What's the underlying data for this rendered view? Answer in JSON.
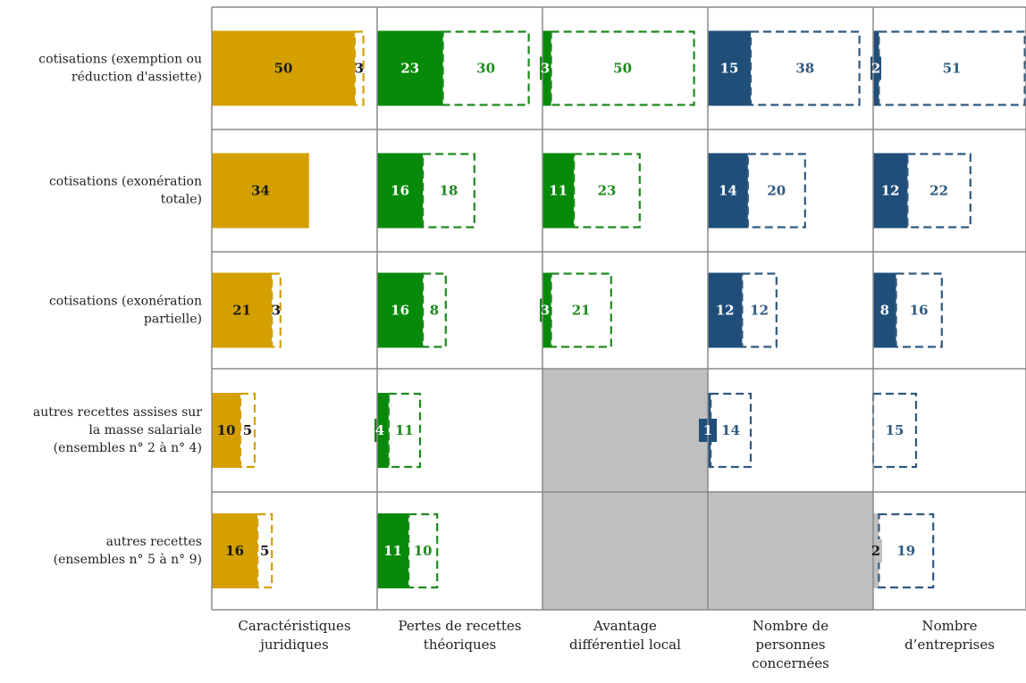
{
  "colors": {
    "legal": "#D4A000",
    "pertes": "#078A0A",
    "pertes_text": "#1E8A1E",
    "blue": "#1F4E79",
    "blue_text": "#2F5A80",
    "grey": "#BFBFBF",
    "dark_text": "#1A1A1A"
  },
  "chart_data": {
    "type": "bar",
    "layout": "small-multiples-grid",
    "note": "Each cell: solid bar = first value, dashed outline = second value",
    "rows": [
      "cotisations (exemption ou\nréduction d'assiette)",
      "cotisations (exonération\ntotale)",
      "cotisations (exonération\npartielle)",
      "autres recettes assises sur\nla masse salariale\n(ensembles n° 2 à n° 4)",
      "autres recettes\n(ensembles n° 5 à n° 9)"
    ],
    "columns": [
      {
        "label": "Caractéristiques\njuridiques",
        "solid_color": "#D4A000",
        "dash_color": "#D4A000",
        "solid_text_color": "#1A1A1A",
        "dash_text_color": "#1A1A1A",
        "cells": [
          {
            "solid": 50,
            "dashed": 3
          },
          {
            "solid": 34,
            "dashed": 0
          },
          {
            "solid": 21,
            "dashed": 3
          },
          {
            "solid": 10,
            "dashed": 5
          },
          {
            "solid": 16,
            "dashed": 5
          }
        ]
      },
      {
        "label": "Pertes de recettes\nthéoriques",
        "solid_color": "#078A0A",
        "dash_color": "#1E8A1E",
        "solid_text_color": "#FFFFFF",
        "dash_text_color": "#1E8A1E",
        "cells": [
          {
            "solid": 23,
            "dashed": 30
          },
          {
            "solid": 16,
            "dashed": 18
          },
          {
            "solid": 16,
            "dashed": 8
          },
          {
            "solid": 4,
            "dashed": 11
          },
          {
            "solid": 11,
            "dashed": 10
          }
        ]
      },
      {
        "label": "Avantage\ndifférentiel local",
        "solid_color": "#078A0A",
        "dash_color": "#1E8A1E",
        "solid_text_color": "#FFFFFF",
        "dash_text_color": "#1E8A1E",
        "cells": [
          {
            "solid": 3,
            "dashed": 50
          },
          {
            "solid": 11,
            "dashed": 23
          },
          {
            "solid": 3,
            "dashed": 21
          },
          null,
          null
        ]
      },
      {
        "label": "Nombre de\npersonnes\nconcernées",
        "solid_color": "#1F4E79",
        "dash_color": "#2F5A80",
        "solid_text_color": "#FFFFFF",
        "dash_text_color": "#2F5A80",
        "cells": [
          {
            "solid": 15,
            "dashed": 38
          },
          {
            "solid": 14,
            "dashed": 20
          },
          {
            "solid": 12,
            "dashed": 12
          },
          {
            "solid": 1,
            "dashed": 14
          },
          null
        ]
      },
      {
        "label": "Nombre\nd’entreprises",
        "solid_color": "#1F4E79",
        "dash_color": "#2F5A80",
        "solid_text_color": "#FFFFFF",
        "dash_text_color": "#2F5A80",
        "cells": [
          {
            "solid": 2,
            "dashed": 51
          },
          {
            "solid": 12,
            "dashed": 22
          },
          {
            "solid": 8,
            "dashed": 16
          },
          {
            "solid": 0,
            "dashed": 15
          },
          {
            "solid": 2,
            "dashed": 19,
            "solid_color": "#BFBFBF",
            "solid_text_color": "#1A1A1A"
          }
        ]
      }
    ]
  }
}
